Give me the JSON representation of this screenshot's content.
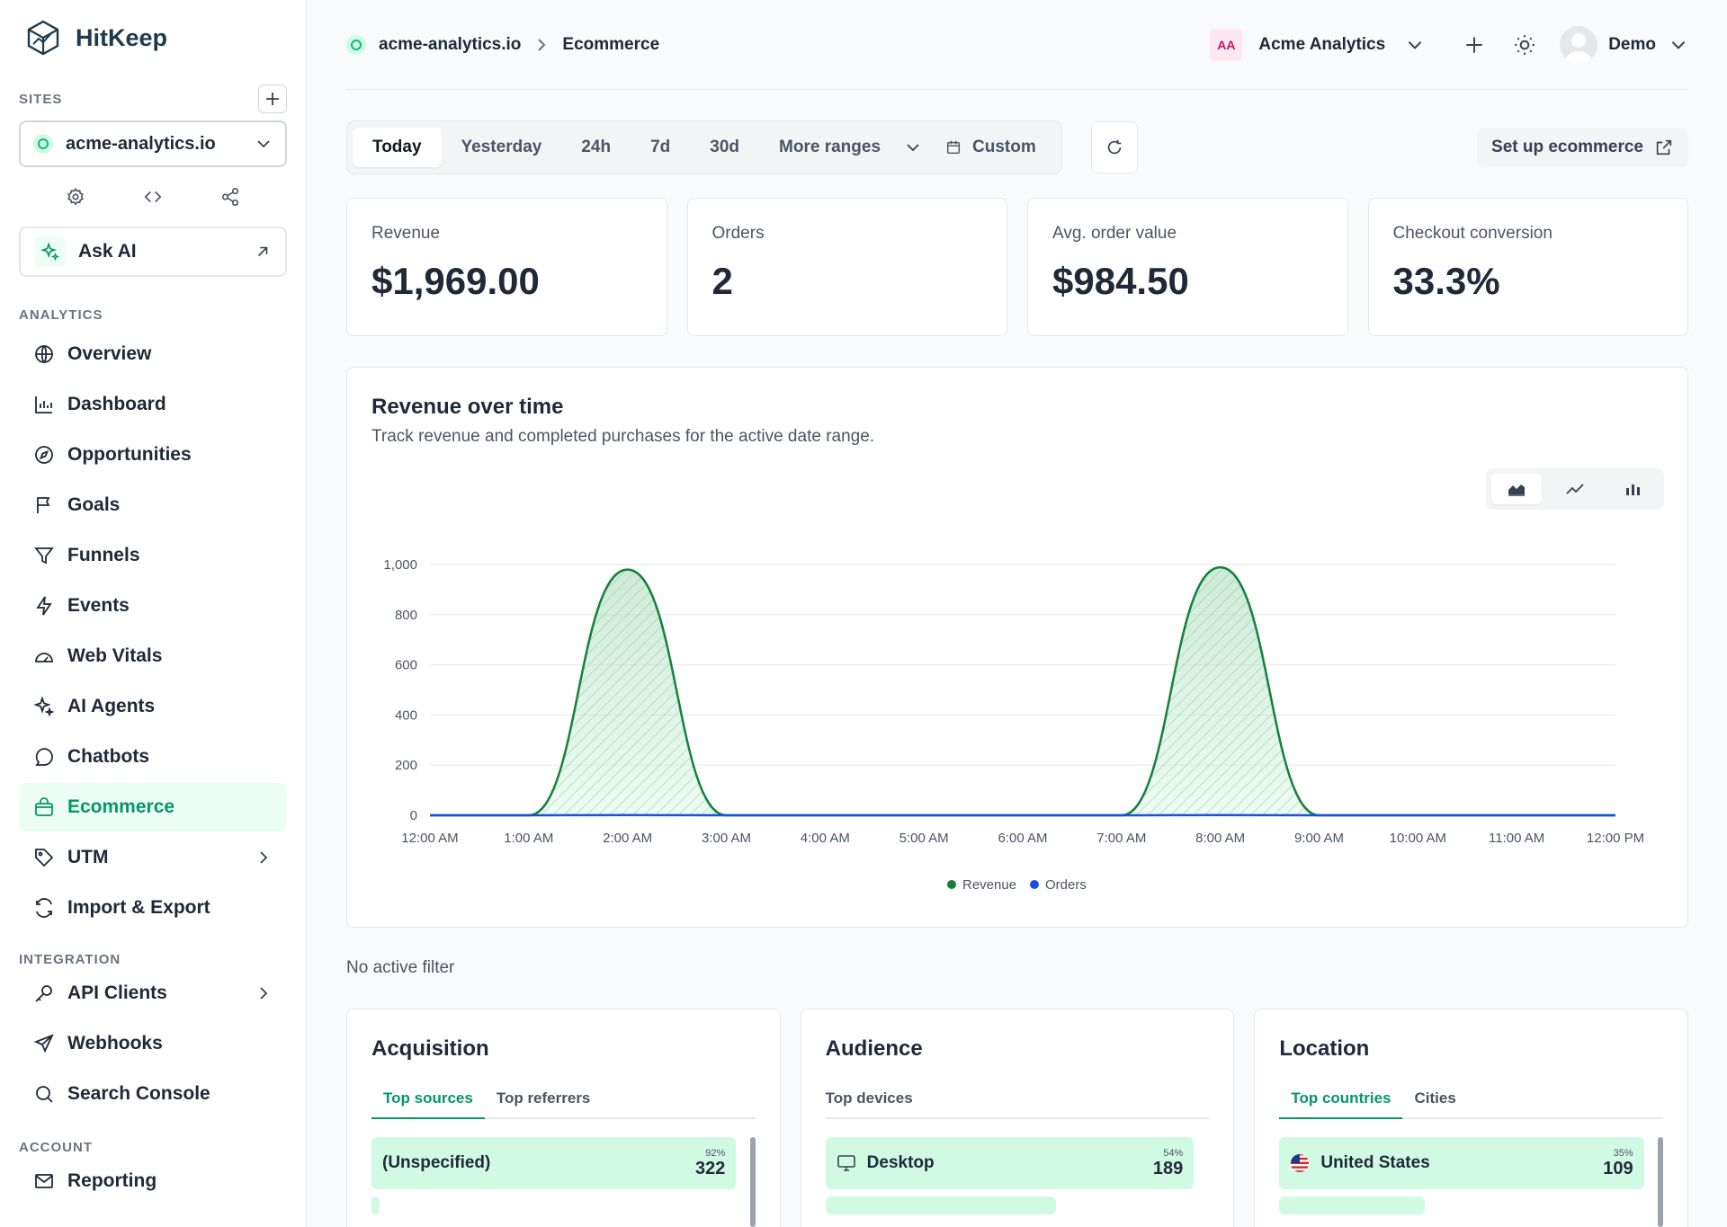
{
  "brand": {
    "name": "HitKeep"
  },
  "sidebar": {
    "sites_label": "SITES",
    "site_name": "acme-analytics.io",
    "ask_ai": "Ask AI",
    "analytics_label": "ANALYTICS",
    "analytics_items": [
      {
        "label": "Overview",
        "icon": "globe-icon"
      },
      {
        "label": "Dashboard",
        "icon": "bar-chart-icon"
      },
      {
        "label": "Opportunities",
        "icon": "compass-icon"
      },
      {
        "label": "Goals",
        "icon": "flag-icon"
      },
      {
        "label": "Funnels",
        "icon": "funnel-icon"
      },
      {
        "label": "Events",
        "icon": "bolt-icon"
      },
      {
        "label": "Web Vitals",
        "icon": "gauge-icon"
      },
      {
        "label": "AI Agents",
        "icon": "sparkle-icon"
      },
      {
        "label": "Chatbots",
        "icon": "chat-icon"
      },
      {
        "label": "Ecommerce",
        "icon": "shopping-bag-icon",
        "active": true
      },
      {
        "label": "UTM",
        "icon": "tag-icon",
        "has_submenu": true
      },
      {
        "label": "Import & Export",
        "icon": "sync-icon"
      }
    ],
    "integration_label": "INTEGRATION",
    "integration_items": [
      {
        "label": "API Clients",
        "icon": "key-icon",
        "has_submenu": true
      },
      {
        "label": "Webhooks",
        "icon": "send-icon"
      },
      {
        "label": "Search Console",
        "icon": "search-icon"
      }
    ],
    "account_label": "ACCOUNT",
    "account_items": [
      {
        "label": "Reporting",
        "icon": "mail-icon"
      }
    ]
  },
  "header": {
    "breadcrumb": [
      "acme-analytics.io",
      "Ecommerce"
    ],
    "org_initials": "AA",
    "org_name": "Acme Analytics",
    "user_name": "Demo"
  },
  "ranges": {
    "options": [
      "Today",
      "Yesterday",
      "24h",
      "7d",
      "30d",
      "More ranges"
    ],
    "selected": "Today",
    "custom": "Custom"
  },
  "setup_button": "Set up ecommerce",
  "kpis": [
    {
      "label": "Revenue",
      "value": "$1,969.00"
    },
    {
      "label": "Orders",
      "value": "2"
    },
    {
      "label": "Avg. order value",
      "value": "$984.50"
    },
    {
      "label": "Checkout conversion",
      "value": "33.3%"
    }
  ],
  "chart": {
    "title": "Revenue over time",
    "subtitle": "Track revenue and completed purchases for the active date range."
  },
  "chart_data": {
    "type": "area",
    "x": [
      "12:00 AM",
      "1:00 AM",
      "2:00 AM",
      "3:00 AM",
      "4:00 AM",
      "5:00 AM",
      "6:00 AM",
      "7:00 AM",
      "8:00 AM",
      "9:00 AM",
      "10:00 AM",
      "11:00 AM",
      "12:00 PM"
    ],
    "series": [
      {
        "name": "Revenue",
        "color": "#15803d",
        "values": [
          0,
          0,
          980,
          0,
          0,
          0,
          0,
          0,
          989,
          0,
          0,
          0,
          0
        ]
      },
      {
        "name": "Orders",
        "color": "#1d4ed8",
        "values": [
          0,
          0,
          1,
          0,
          0,
          0,
          0,
          0,
          1,
          0,
          0,
          0,
          0
        ]
      }
    ],
    "yticks": [
      0,
      200,
      400,
      600,
      800,
      1000
    ],
    "ytick_labels": [
      "0",
      "200",
      "400",
      "600",
      "800",
      "1,000"
    ],
    "ylim": [
      0,
      1000
    ],
    "grid": true,
    "legend": "bottom-center"
  },
  "filter_status": "No active filter",
  "panels": [
    {
      "title": "Acquisition",
      "tabs": [
        "Top sources",
        "Top referrers"
      ],
      "active_tab": 0,
      "rows": [
        {
          "label": "(Unspecified)",
          "pct": "92%",
          "count": "322",
          "share": 0.92
        }
      ]
    },
    {
      "title": "Audience",
      "tabs": [
        "Top devices"
      ],
      "active_tab": -1,
      "rows": [
        {
          "label": "Desktop",
          "icon": "monitor-icon",
          "pct": "54%",
          "count": "189",
          "share": 0.54
        }
      ]
    },
    {
      "title": "Location",
      "tabs": [
        "Top countries",
        "Cities"
      ],
      "active_tab": 0,
      "rows": [
        {
          "label": "United States",
          "icon": "us-flag-icon",
          "pct": "35%",
          "count": "109",
          "share": 0.35
        }
      ]
    }
  ]
}
